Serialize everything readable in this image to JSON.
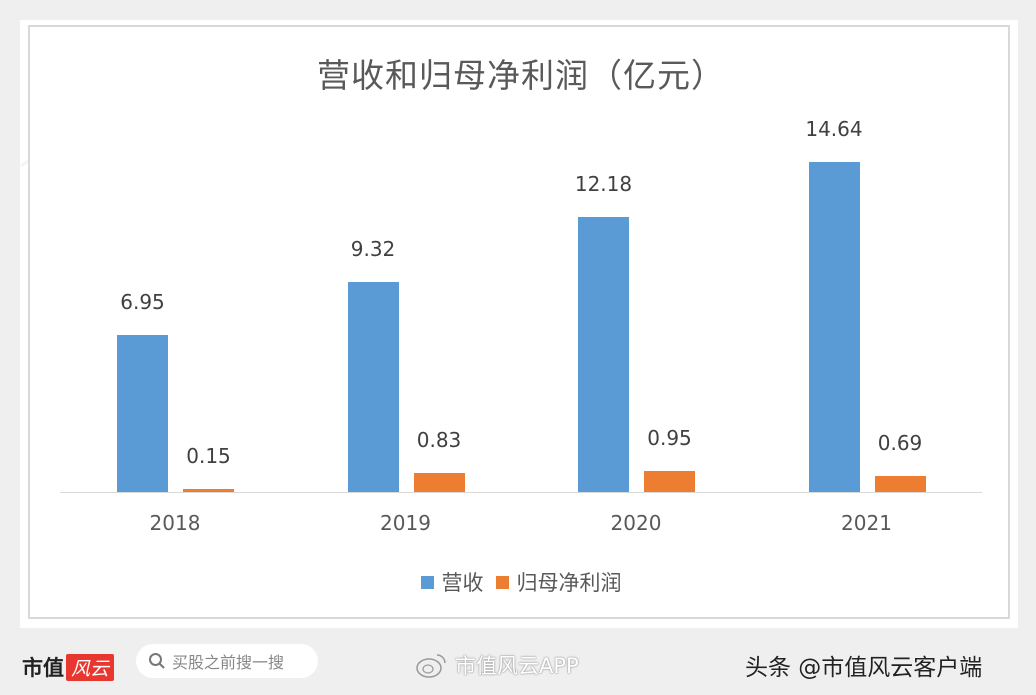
{
  "chart_data": {
    "type": "bar",
    "title": "营收和归母净利润（亿元）",
    "categories": [
      "2018",
      "2019",
      "2020",
      "2021"
    ],
    "series": [
      {
        "name": "营收",
        "color": "#5b9bd5",
        "values": [
          6.95,
          9.32,
          12.18,
          14.64
        ],
        "labels": [
          "6.95",
          "9.32",
          "12.18",
          "14.64"
        ]
      },
      {
        "name": "归母净利润",
        "color": "#ed7d31",
        "values": [
          0.15,
          0.83,
          0.95,
          0.69
        ],
        "labels": [
          "0.15",
          "0.83",
          "0.95",
          "0.69"
        ]
      }
    ],
    "xlabel": "",
    "ylabel": "",
    "ylim": [
      0,
      15
    ],
    "grid": false,
    "legend_position": "bottom",
    "data_labels": true
  },
  "watermark": "市值风云",
  "footer": {
    "brand_black": "市值",
    "brand_red": "风云",
    "search_placeholder": "买股之前搜一搜",
    "weibo_text": "市值风云APP",
    "toutiao_text": "头条 @市值风云客户端"
  }
}
